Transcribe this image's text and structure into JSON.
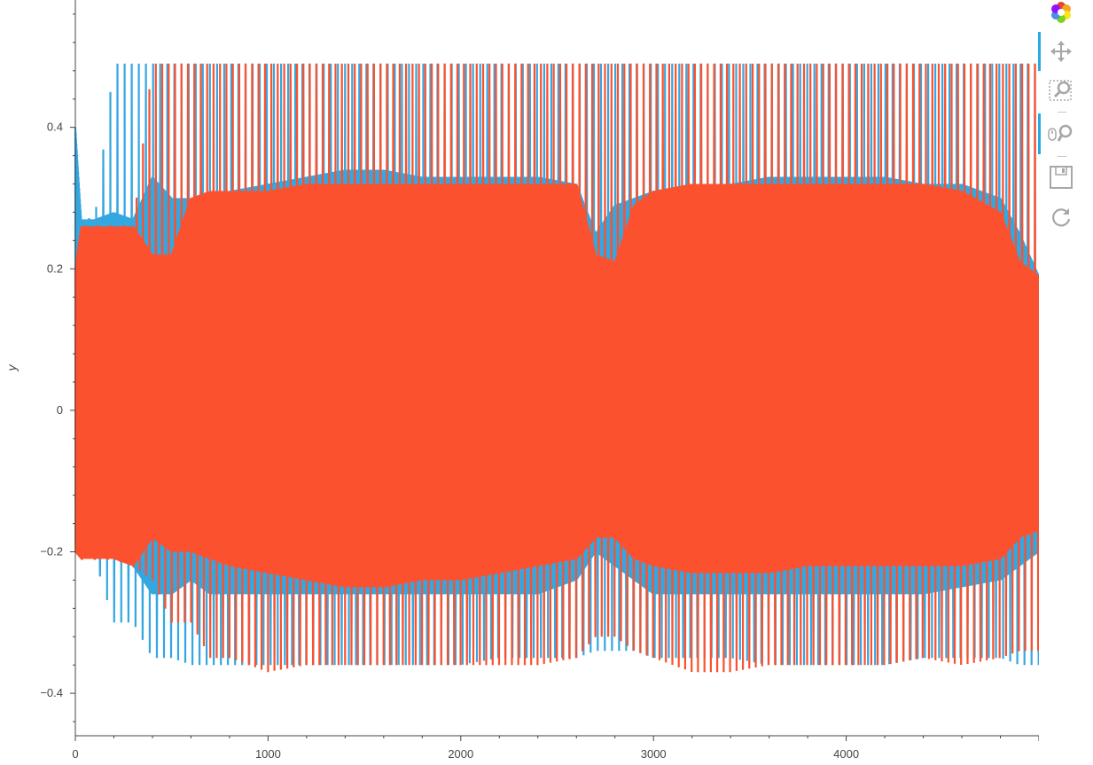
{
  "chart_data": {
    "type": "line",
    "xlabel": "",
    "ylabel": "y",
    "xlim": [
      0,
      5000
    ],
    "ylim": [
      -0.46,
      0.58
    ],
    "x_ticks": [
      {
        "value": 0,
        "label": "0"
      },
      {
        "value": 1000,
        "label": "1000"
      },
      {
        "value": 2000,
        "label": "2000"
      },
      {
        "value": 3000,
        "label": "3000"
      },
      {
        "value": 4000,
        "label": "4000"
      }
    ],
    "y_ticks": [
      {
        "value": 0.4,
        "label": "0.4"
      },
      {
        "value": 0.2,
        "label": "0.2"
      },
      {
        "value": 0,
        "label": "0"
      },
      {
        "value": -0.2,
        "label": "−0.2"
      },
      {
        "value": -0.4,
        "label": "−0.4"
      }
    ],
    "grid": false,
    "series": [
      {
        "color": "#34a7e1",
        "x": [
          0,
          30,
          100,
          200,
          300,
          400,
          500,
          600,
          700,
          800,
          1000,
          1200,
          1400,
          1600,
          1800,
          2000,
          2200,
          2400,
          2600,
          2700,
          2800,
          2900,
          3000,
          3200,
          3400,
          3600,
          3800,
          4000,
          4200,
          4400,
          4600,
          4800,
          4900,
          5000
        ],
        "upper": [
          0.4,
          0.27,
          0.27,
          0.28,
          0.27,
          0.33,
          0.3,
          0.3,
          0.3,
          0.31,
          0.32,
          0.33,
          0.34,
          0.34,
          0.33,
          0.33,
          0.33,
          0.33,
          0.32,
          0.25,
          0.29,
          0.3,
          0.31,
          0.32,
          0.32,
          0.33,
          0.33,
          0.33,
          0.33,
          0.32,
          0.32,
          0.3,
          0.25,
          0.19
        ],
        "lower": [
          -0.19,
          -0.2,
          -0.21,
          -0.21,
          -0.22,
          -0.26,
          -0.26,
          -0.24,
          -0.26,
          -0.26,
          -0.26,
          -0.26,
          -0.26,
          -0.26,
          -0.26,
          -0.26,
          -0.26,
          -0.26,
          -0.24,
          -0.2,
          -0.22,
          -0.24,
          -0.26,
          -0.26,
          -0.26,
          -0.26,
          -0.26,
          -0.26,
          -0.26,
          -0.26,
          -0.25,
          -0.24,
          -0.22,
          -0.2
        ],
        "spike_max": [
          0.4,
          0.27,
          0.27,
          0.49,
          0.49,
          0.49,
          0.49,
          0.49,
          0.49,
          0.49,
          0.49,
          0.49,
          0.49,
          0.49,
          0.49,
          0.49,
          0.49,
          0.49,
          0.49,
          0.49,
          0.49,
          0.49,
          0.49,
          0.49,
          0.49,
          0.49,
          0.49,
          0.49,
          0.49,
          0.49,
          0.49,
          0.49,
          0.49,
          0.49
        ],
        "spike_min": [
          -0.19,
          -0.2,
          -0.21,
          -0.3,
          -0.3,
          -0.35,
          -0.35,
          -0.36,
          -0.36,
          -0.36,
          -0.36,
          -0.36,
          -0.36,
          -0.36,
          -0.36,
          -0.36,
          -0.35,
          -0.35,
          -0.35,
          -0.34,
          -0.34,
          -0.34,
          -0.35,
          -0.35,
          -0.35,
          -0.36,
          -0.36,
          -0.36,
          -0.36,
          -0.35,
          -0.35,
          -0.35,
          -0.36,
          -0.36
        ]
      },
      {
        "color": "#fb512e",
        "x": [
          0,
          30,
          100,
          200,
          300,
          400,
          500,
          600,
          700,
          800,
          1000,
          1200,
          1400,
          1600,
          1800,
          2000,
          2200,
          2400,
          2600,
          2700,
          2800,
          2900,
          3000,
          3200,
          3400,
          3600,
          3800,
          4000,
          4200,
          4400,
          4600,
          4800,
          4900,
          5000
        ],
        "upper": [
          0.2,
          0.26,
          0.26,
          0.26,
          0.26,
          0.22,
          0.22,
          0.3,
          0.31,
          0.31,
          0.31,
          0.32,
          0.32,
          0.32,
          0.32,
          0.32,
          0.32,
          0.32,
          0.32,
          0.22,
          0.21,
          0.29,
          0.31,
          0.32,
          0.32,
          0.32,
          0.32,
          0.32,
          0.32,
          0.32,
          0.31,
          0.28,
          0.21,
          0.19
        ],
        "lower": [
          -0.2,
          -0.21,
          -0.21,
          -0.21,
          -0.22,
          -0.18,
          -0.2,
          -0.2,
          -0.21,
          -0.22,
          -0.23,
          -0.24,
          -0.25,
          -0.25,
          -0.24,
          -0.24,
          -0.23,
          -0.22,
          -0.21,
          -0.18,
          -0.18,
          -0.21,
          -0.22,
          -0.23,
          -0.23,
          -0.23,
          -0.22,
          -0.22,
          -0.22,
          -0.22,
          -0.22,
          -0.21,
          -0.18,
          -0.17
        ],
        "spike_max": [
          0.2,
          0.26,
          0.26,
          0.26,
          0.26,
          0.49,
          0.49,
          0.49,
          0.49,
          0.49,
          0.49,
          0.49,
          0.49,
          0.49,
          0.49,
          0.49,
          0.49,
          0.49,
          0.49,
          0.49,
          0.49,
          0.49,
          0.49,
          0.49,
          0.49,
          0.49,
          0.49,
          0.49,
          0.49,
          0.49,
          0.49,
          0.49,
          0.49,
          0.49
        ],
        "spike_min": [
          -0.2,
          -0.21,
          -0.21,
          -0.21,
          -0.22,
          -0.24,
          -0.3,
          -0.3,
          -0.35,
          -0.35,
          -0.37,
          -0.36,
          -0.36,
          -0.36,
          -0.36,
          -0.36,
          -0.36,
          -0.36,
          -0.35,
          -0.32,
          -0.32,
          -0.34,
          -0.35,
          -0.37,
          -0.37,
          -0.36,
          -0.36,
          -0.36,
          -0.36,
          -0.35,
          -0.36,
          -0.35,
          -0.34,
          -0.34
        ]
      }
    ]
  },
  "toolbar": {
    "tools": [
      {
        "id": "logo",
        "icon": "bokeh-logo-icon",
        "active": false
      },
      {
        "id": "pan",
        "icon": "pan-icon",
        "active": true
      },
      {
        "id": "box-zoom",
        "icon": "box-zoom-icon",
        "active": false
      },
      {
        "id": "wheel-zoom",
        "icon": "wheel-zoom-icon",
        "active": true
      },
      {
        "id": "save",
        "icon": "save-icon",
        "active": false
      },
      {
        "id": "reset",
        "icon": "reset-icon",
        "active": false
      }
    ]
  }
}
